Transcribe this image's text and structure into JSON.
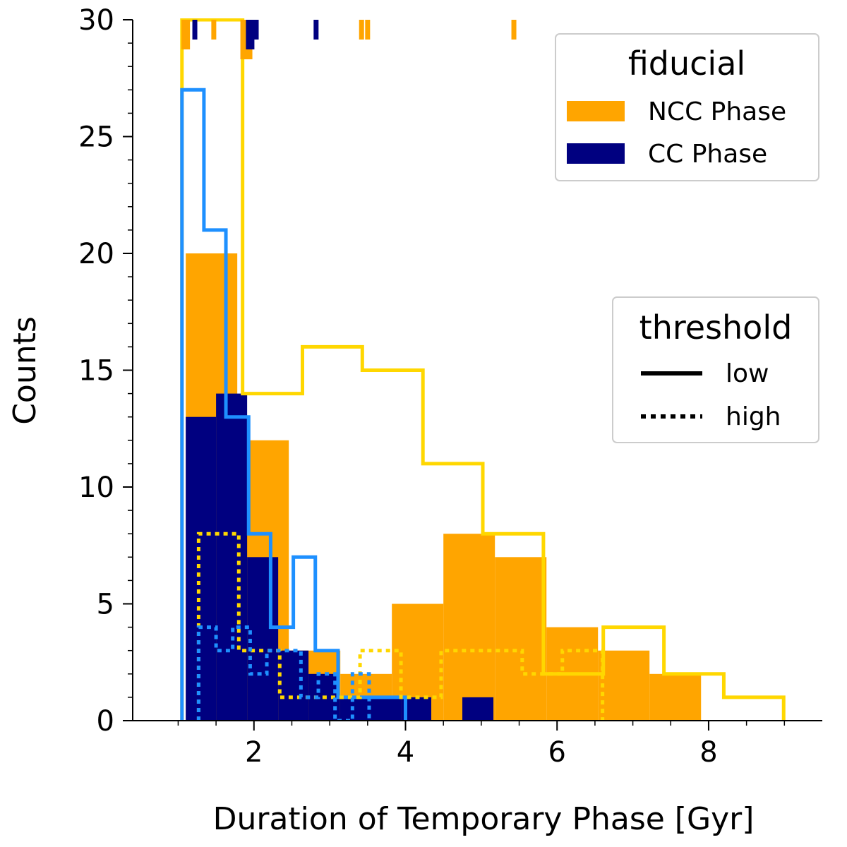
{
  "chart_data": {
    "type": "bar",
    "xlabel": "Duration of Temporary Phase [Gyr]",
    "ylabel": "Counts",
    "xlim": [
      0.4,
      9.5
    ],
    "ylim": [
      0,
      30
    ],
    "xticks": [
      2,
      4,
      6,
      8
    ],
    "yticks": [
      0,
      5,
      10,
      15,
      20,
      25,
      30
    ],
    "colors": {
      "ncc": "#FFA500",
      "cc": "#000080",
      "ncc_low_step": "#FFD700",
      "cc_low_step": "#1E90FF"
    },
    "legend_fiducial": {
      "title": "fiducial",
      "entries": [
        {
          "label": "NCC Phase",
          "color": "#FFA500"
        },
        {
          "label": "CC Phase",
          "color": "#000080"
        }
      ],
      "placement": "top-right"
    },
    "legend_threshold": {
      "title": "threshold",
      "entries": [
        {
          "label": "low",
          "style": "solid"
        },
        {
          "label": "high",
          "style": "dotted"
        }
      ],
      "placement": "center-right"
    },
    "series": [
      {
        "kind": "bar",
        "color": "#FFA500",
        "edges": [
          1.1,
          1.78,
          2.46,
          3.14,
          3.82,
          4.5,
          5.18,
          5.86,
          6.54,
          7.22,
          7.9
        ],
        "counts": [
          20,
          12,
          3,
          2,
          5,
          8,
          7,
          4,
          3,
          2
        ]
      },
      {
        "kind": "bar",
        "color": "#000080",
        "edges": [
          1.1,
          1.5,
          1.91,
          2.32,
          2.72,
          3.13,
          3.53,
          3.94,
          4.34,
          4.75,
          5.16
        ],
        "counts": [
          13,
          14,
          7,
          3,
          2,
          1,
          1,
          1,
          0,
          1
        ]
      },
      {
        "kind": "step",
        "style": "solid",
        "color": "#FFD700",
        "edges": [
          1.05,
          1.85,
          2.64,
          3.43,
          4.23,
          5.02,
          5.82,
          6.61,
          7.41,
          8.2,
          8.99
        ],
        "counts": [
          30,
          14,
          16,
          15,
          11,
          8,
          2,
          4,
          2,
          1
        ]
      },
      {
        "kind": "step",
        "style": "solid",
        "color": "#1E90FF",
        "edges": [
          1.05,
          1.34,
          1.63,
          1.93,
          2.22,
          2.52,
          2.81,
          3.11,
          3.41,
          3.7,
          4.0
        ],
        "counts": [
          27,
          21,
          13,
          8,
          4,
          7,
          3,
          1,
          1,
          1
        ]
      },
      {
        "kind": "step",
        "style": "dotted",
        "color": "#FFD700",
        "edges": [
          1.27,
          1.8,
          2.34,
          2.87,
          3.4,
          3.94,
          4.47,
          5.0,
          5.54,
          6.07,
          6.6
        ],
        "counts": [
          8,
          3,
          1,
          1,
          3,
          1,
          3,
          3,
          2,
          3
        ]
      },
      {
        "kind": "step",
        "style": "dotted",
        "color": "#1E90FF",
        "edges": [
          1.27,
          1.5,
          1.72,
          1.95,
          2.17,
          2.4,
          2.62,
          2.85,
          3.07,
          3.3,
          3.52
        ],
        "counts": [
          4,
          3,
          4,
          2,
          3,
          3,
          1,
          2,
          0,
          2
        ]
      }
    ],
    "rug": [
      {
        "color": "#FFA500",
        "x": [
          1.1,
          1.47,
          1.9,
          3.42,
          3.5,
          5.43
        ],
        "counts": [
          2,
          1,
          3,
          1,
          1,
          1
        ]
      },
      {
        "color": "#000080",
        "x": [
          1.22,
          1.95,
          2.03,
          2.82
        ],
        "counts": [
          1,
          2,
          1,
          1
        ]
      }
    ]
  }
}
